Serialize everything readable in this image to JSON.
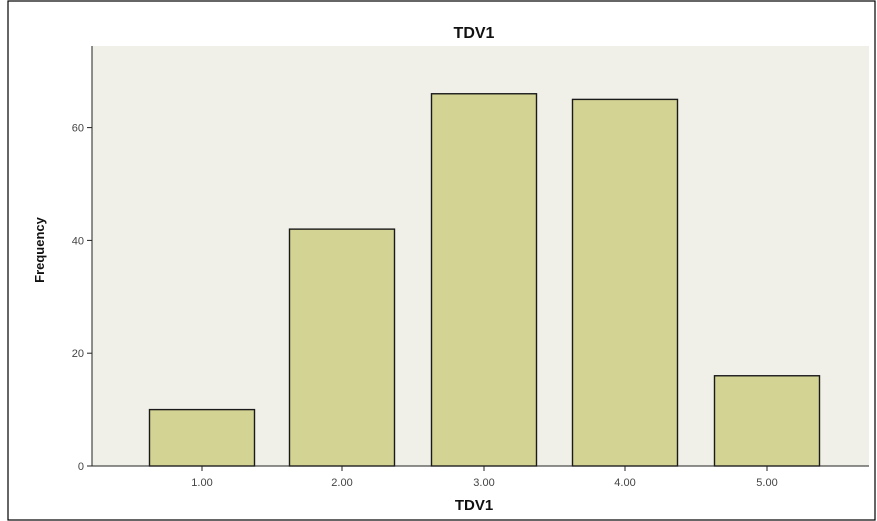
{
  "chart_data": {
    "type": "bar",
    "title": "TDV1",
    "xlabel": "TDV1",
    "ylabel": "Frequency",
    "categories": [
      "1.00",
      "2.00",
      "3.00",
      "4.00",
      "5.00"
    ],
    "values": [
      10,
      42,
      66,
      65,
      16
    ],
    "ylim": [
      0,
      72
    ],
    "yticks": [
      0,
      20,
      40,
      60
    ],
    "ytick_labels": [
      "0",
      "20",
      "40",
      "60"
    ],
    "grid": false,
    "legend": "none",
    "colors": {
      "bar_fill": "#d3d393",
      "plot_background": "#f0f0e8",
      "bar_stroke": "#1a1a1a"
    }
  }
}
